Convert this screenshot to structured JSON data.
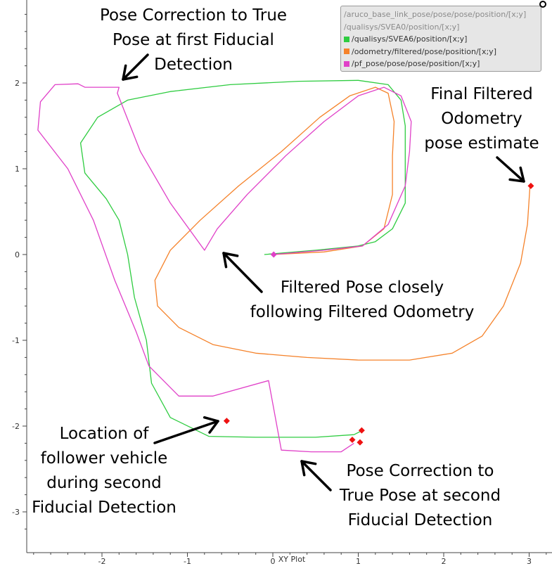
{
  "chart_data": {
    "type": "line",
    "title": "",
    "xlabel": "XY Plot",
    "ylabel": "",
    "xlim": [
      -2.85,
      3.2
    ],
    "ylim": [
      -3.25,
      2.95
    ],
    "x_ticks": [
      "-2",
      "-1",
      "0",
      "1",
      "2",
      "3"
    ],
    "y_ticks": [
      "2",
      "1",
      "0",
      "-1",
      "-2",
      "-3"
    ],
    "grid": false,
    "legend_position": "top-right",
    "legend": [
      {
        "label": "/aruco_base_link_pose/pose/pose/position/[x;y]",
        "color": "",
        "shown": false
      },
      {
        "label": "/qualisys/SVEA0/position/[x;y]",
        "color": "",
        "shown": false
      },
      {
        "label": "/qualisys/SVEA6/position/[x;y]",
        "color": "#2ecc40",
        "shown": true
      },
      {
        "label": "/odometry/filtered/pose/position/[x;y]",
        "color": "#f5822a",
        "shown": true
      },
      {
        "label": "/pf_pose/pose/pose/position/[x;y]",
        "color": "#e040c8",
        "shown": true
      }
    ],
    "series": [
      {
        "name": "/qualisys/SVEA6/position/[x;y]",
        "color": "#2ecc40",
        "points": [
          [
            -0.1,
            0.0
          ],
          [
            0.5,
            0.05
          ],
          [
            1.0,
            0.1
          ],
          [
            1.2,
            0.15
          ],
          [
            1.4,
            0.3
          ],
          [
            1.55,
            0.6
          ],
          [
            1.55,
            1.1
          ],
          [
            1.55,
            1.5
          ],
          [
            1.5,
            1.8
          ],
          [
            1.35,
            1.98
          ],
          [
            1.0,
            2.03
          ],
          [
            0.3,
            2.02
          ],
          [
            -0.5,
            1.98
          ],
          [
            -1.2,
            1.9
          ],
          [
            -1.7,
            1.8
          ],
          [
            -2.05,
            1.6
          ],
          [
            -2.25,
            1.3
          ],
          [
            -2.2,
            0.95
          ],
          [
            -1.95,
            0.65
          ],
          [
            -1.8,
            0.4
          ],
          [
            -1.7,
            0.0
          ],
          [
            -1.62,
            -0.5
          ],
          [
            -1.48,
            -1.0
          ],
          [
            -1.42,
            -1.5
          ],
          [
            -1.2,
            -1.9
          ],
          [
            -0.75,
            -2.12
          ],
          [
            -0.2,
            -2.13
          ],
          [
            0.5,
            -2.13
          ],
          [
            0.95,
            -2.1
          ],
          [
            1.03,
            -2.06
          ]
        ]
      },
      {
        "name": "/odometry/filtered/pose/position/[x;y]",
        "color": "#f5822a",
        "points": [
          [
            0.0,
            0.0
          ],
          [
            0.6,
            0.03
          ],
          [
            1.05,
            0.1
          ],
          [
            1.3,
            0.3
          ],
          [
            1.4,
            0.7
          ],
          [
            1.4,
            1.15
          ],
          [
            1.42,
            1.55
          ],
          [
            1.35,
            1.88
          ],
          [
            1.2,
            1.95
          ],
          [
            0.9,
            1.85
          ],
          [
            0.55,
            1.6
          ],
          [
            0.1,
            1.2
          ],
          [
            -0.4,
            0.8
          ],
          [
            -0.85,
            0.4
          ],
          [
            -1.2,
            0.05
          ],
          [
            -1.38,
            -0.3
          ],
          [
            -1.35,
            -0.6
          ],
          [
            -1.1,
            -0.85
          ],
          [
            -0.7,
            -1.05
          ],
          [
            -0.2,
            -1.15
          ],
          [
            0.4,
            -1.2
          ],
          [
            1.0,
            -1.23
          ],
          [
            1.6,
            -1.23
          ],
          [
            2.1,
            -1.15
          ],
          [
            2.45,
            -0.95
          ],
          [
            2.7,
            -0.6
          ],
          [
            2.9,
            -0.1
          ],
          [
            2.98,
            0.35
          ],
          [
            3.01,
            0.8
          ]
        ]
      },
      {
        "name": "/pf_pose/pose/pose/position/[x;y]",
        "color": "#e040c8",
        "points": [
          [
            0.0,
            0.0
          ],
          [
            0.6,
            0.05
          ],
          [
            1.05,
            0.1
          ],
          [
            1.35,
            0.35
          ],
          [
            1.55,
            0.8
          ],
          [
            1.6,
            1.2
          ],
          [
            1.62,
            1.55
          ],
          [
            1.5,
            1.85
          ],
          [
            1.3,
            1.95
          ],
          [
            1.0,
            1.85
          ],
          [
            0.6,
            1.55
          ],
          [
            0.15,
            1.15
          ],
          [
            -0.3,
            0.7
          ],
          [
            -0.65,
            0.3
          ],
          [
            -0.8,
            0.05
          ],
          [
            -1.2,
            0.6
          ],
          [
            -1.55,
            1.2
          ],
          [
            -1.82,
            1.88
          ],
          [
            -1.8,
            1.95
          ],
          [
            -2.2,
            1.95
          ],
          [
            -2.28,
            1.99
          ],
          [
            -2.55,
            1.98
          ],
          [
            -2.72,
            1.78
          ],
          [
            -2.75,
            1.45
          ],
          [
            -2.4,
            1.0
          ],
          [
            -2.1,
            0.4
          ],
          [
            -1.85,
            -0.3
          ],
          [
            -1.6,
            -0.9
          ],
          [
            -1.45,
            -1.3
          ],
          [
            -1.1,
            -1.65
          ],
          [
            -0.7,
            -1.65
          ],
          [
            -0.05,
            -1.47
          ],
          [
            0.1,
            -2.28
          ],
          [
            0.45,
            -2.3
          ],
          [
            0.8,
            -2.3
          ],
          [
            0.95,
            -2.2
          ]
        ]
      }
    ],
    "markers": [
      {
        "x": -0.54,
        "y": -1.94,
        "color": "#ee1111"
      },
      {
        "x": 3.02,
        "y": 0.8,
        "color": "#ee1111"
      },
      {
        "x": 1.04,
        "y": -2.05,
        "color": "#ee1111"
      },
      {
        "x": 0.93,
        "y": -2.16,
        "color": "#ee1111"
      },
      {
        "x": 1.02,
        "y": -2.19,
        "color": "#ee1111"
      },
      {
        "x": 0.01,
        "y": 0.0,
        "color": "#e040c8"
      }
    ],
    "annotations": [
      {
        "text": "Pose Correction to True\nPose at first Fiducial\nDetection"
      },
      {
        "text": "Final Filtered\nOdometry\npose estimate"
      },
      {
        "text": "Filtered Pose closely\nfollowing Filtered Odometry"
      },
      {
        "text": "Location of\nfollower vehicle\nduring second\nFiducial Detection"
      },
      {
        "text": "Pose Correction to\nTrue Pose at second\nFiducial Detection"
      }
    ]
  }
}
